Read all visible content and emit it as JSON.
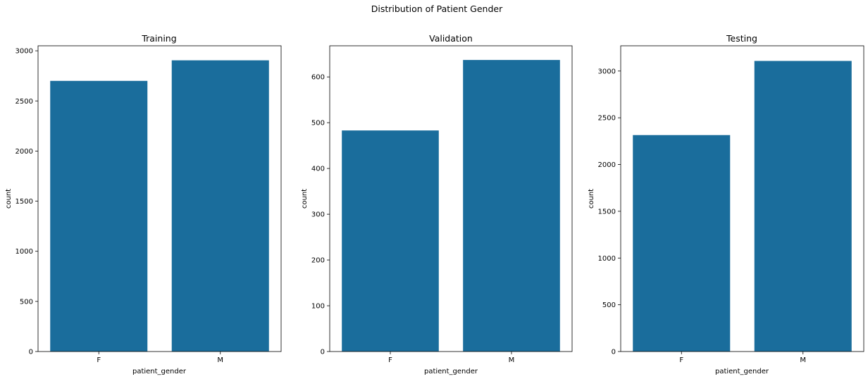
{
  "figure": {
    "suptitle": "Distribution of Patient Gender",
    "bar_color": "#1a6d9c"
  },
  "chart_data": [
    {
      "type": "bar",
      "title": "Training",
      "xlabel": "patient_gender",
      "ylabel": "count",
      "categories": [
        "F",
        "M"
      ],
      "values": [
        2700,
        2905
      ],
      "ylim": [
        0,
        3050
      ],
      "yticks": [
        0,
        500,
        1000,
        1500,
        2000,
        2500,
        3000
      ],
      "grid": false
    },
    {
      "type": "bar",
      "title": "Validation",
      "xlabel": "patient_gender",
      "ylabel": "count",
      "categories": [
        "F",
        "M"
      ],
      "values": [
        483,
        637
      ],
      "ylim": [
        0,
        668
      ],
      "yticks": [
        0,
        100,
        200,
        300,
        400,
        500,
        600
      ],
      "grid": false
    },
    {
      "type": "bar",
      "title": "Testing",
      "xlabel": "patient_gender",
      "ylabel": "count",
      "categories": [
        "F",
        "M"
      ],
      "values": [
        2315,
        3108
      ],
      "ylim": [
        0,
        3270
      ],
      "yticks": [
        0,
        500,
        1000,
        1500,
        2000,
        2500,
        3000
      ],
      "grid": false
    }
  ]
}
